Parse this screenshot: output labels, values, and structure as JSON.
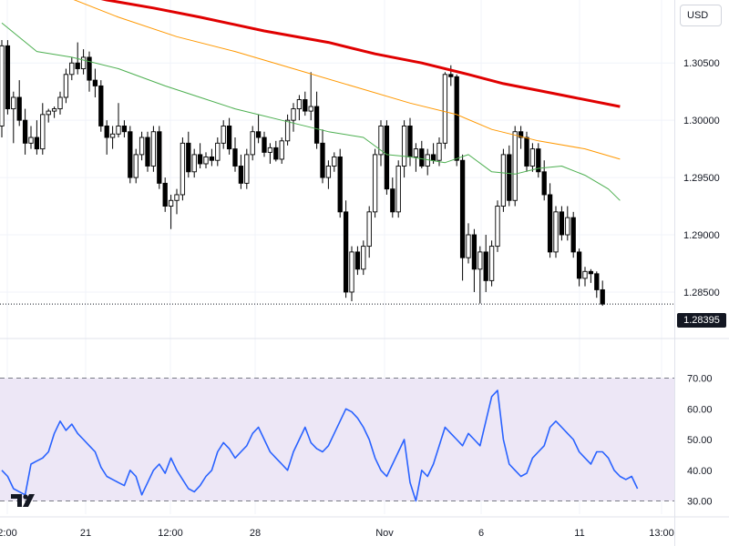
{
  "currency_selector": {
    "label": "USD"
  },
  "last_price": {
    "value": 1.28395,
    "label": "1.28395"
  },
  "colors": {
    "up_fill": "#ffffff",
    "candle": "#000000",
    "ma_fast": "#4caf50",
    "ma_mid": "#ff9800",
    "ma_slow": "#e00000",
    "rsi_line": "#2962ff",
    "rsi_band": "#ede7f6"
  },
  "chart_data": [
    {
      "type": "candlestick",
      "title": "",
      "instrument": "",
      "x_tick_labels": [
        "2:00",
        "21",
        "12:00",
        "28",
        "Nov",
        "6",
        "11",
        "13:00"
      ],
      "y_tick_labels": [
        "1.30500",
        "1.30000",
        "1.29500",
        "1.29000",
        "1.28500"
      ],
      "ylim": [
        1.2815,
        1.3105
      ],
      "candles": [
        [
          1.2995,
          1.307,
          1.2985,
          1.3065
        ],
        [
          1.3065,
          1.307,
          1.3005,
          1.301
        ],
        [
          1.301,
          1.3025,
          1.298,
          1.302
        ],
        [
          1.302,
          1.3035,
          1.2995,
          1.3
        ],
        [
          1.3,
          1.301,
          1.297,
          1.298
        ],
        [
          1.298,
          1.2995,
          1.2975,
          1.2985
        ],
        [
          1.2985,
          1.3,
          1.297,
          1.2975
        ],
        [
          1.2975,
          1.3015,
          1.297,
          1.3005
        ],
        [
          1.3005,
          1.301,
          1.2998,
          1.3008
        ],
        [
          1.3008,
          1.3012,
          1.3002,
          1.301
        ],
        [
          1.301,
          1.3025,
          1.3005,
          1.302
        ],
        [
          1.302,
          1.3045,
          1.3015,
          1.304
        ],
        [
          1.304,
          1.3055,
          1.3035,
          1.305
        ],
        [
          1.305,
          1.3068,
          1.304,
          1.3045
        ],
        [
          1.3045,
          1.3062,
          1.304,
          1.3055
        ],
        [
          1.3055,
          1.306,
          1.3025,
          1.3035
        ],
        [
          1.3035,
          1.3045,
          1.302,
          1.303
        ],
        [
          1.303,
          1.3035,
          1.299,
          1.2995
        ],
        [
          1.2995,
          1.3,
          1.297,
          1.2985
        ],
        [
          1.2985,
          1.2995,
          1.2975,
          1.2988
        ],
        [
          1.2988,
          1.3015,
          1.2985,
          1.2995
        ],
        [
          1.2995,
          1.3,
          1.2985,
          1.299
        ],
        [
          1.299,
          1.2995,
          1.2945,
          1.295
        ],
        [
          1.295,
          1.2975,
          1.2945,
          1.297
        ],
        [
          1.297,
          1.299,
          1.2965,
          1.2985
        ],
        [
          1.2985,
          1.299,
          1.2955,
          1.296
        ],
        [
          1.296,
          1.2995,
          1.2955,
          1.299
        ],
        [
          1.299,
          1.2995,
          1.294,
          1.2945
        ],
        [
          1.2945,
          1.295,
          1.292,
          1.2925
        ],
        [
          1.2925,
          1.2935,
          1.2905,
          1.293
        ],
        [
          1.293,
          1.294,
          1.2918,
          1.2935
        ],
        [
          1.2935,
          1.2985,
          1.293,
          1.298
        ],
        [
          1.298,
          1.299,
          1.295,
          1.2955
        ],
        [
          1.2955,
          1.2975,
          1.295,
          1.297
        ],
        [
          1.297,
          1.298,
          1.2958,
          1.2962
        ],
        [
          1.2962,
          1.2972,
          1.2958,
          1.2968
        ],
        [
          1.2968,
          1.2975,
          1.296,
          1.2965
        ],
        [
          1.2965,
          1.2985,
          1.296,
          1.298
        ],
        [
          1.298,
          1.3,
          1.2975,
          1.2995
        ],
        [
          1.2995,
          1.3002,
          1.297,
          1.2975
        ],
        [
          1.2975,
          1.2985,
          1.2955,
          1.296
        ],
        [
          1.296,
          1.297,
          1.294,
          1.2945
        ],
        [
          1.2945,
          1.2975,
          1.294,
          1.297
        ],
        [
          1.297,
          1.2995,
          1.2965,
          1.299
        ],
        [
          1.299,
          1.3005,
          1.298,
          1.2985
        ],
        [
          1.2985,
          1.299,
          1.2968,
          1.2972
        ],
        [
          1.2972,
          1.298,
          1.2962,
          1.2976
        ],
        [
          1.2976,
          1.2982,
          1.2964,
          1.2966
        ],
        [
          1.2966,
          1.2985,
          1.2962,
          1.2982
        ],
        [
          1.2982,
          1.3005,
          1.2978,
          1.3
        ],
        [
          1.3,
          1.3015,
          1.299,
          1.301
        ],
        [
          1.301,
          1.3022,
          1.3,
          1.3018
        ],
        [
          1.3018,
          1.3025,
          1.3004,
          1.3008
        ],
        [
          1.3008,
          1.3042,
          1.3,
          1.3012
        ],
        [
          1.3012,
          1.3025,
          1.2975,
          1.298
        ],
        [
          1.298,
          1.2992,
          1.2945,
          1.295
        ],
        [
          1.295,
          1.2965,
          1.294,
          1.296
        ],
        [
          1.296,
          1.2972,
          1.2955,
          1.2968
        ],
        [
          1.2968,
          1.2975,
          1.2915,
          1.292
        ],
        [
          1.292,
          1.293,
          1.2845,
          1.285
        ],
        [
          1.285,
          1.289,
          1.2842,
          1.2885
        ],
        [
          1.2885,
          1.289,
          1.2865,
          1.287
        ],
        [
          1.287,
          1.2895,
          1.2865,
          1.289
        ],
        [
          1.289,
          1.2925,
          1.288,
          1.292
        ],
        [
          1.292,
          1.2975,
          1.2915,
          1.297
        ],
        [
          1.297,
          1.3,
          1.296,
          1.2995
        ],
        [
          1.2995,
          1.3,
          1.2935,
          1.294
        ],
        [
          1.294,
          1.295,
          1.2915,
          1.292
        ],
        [
          1.292,
          1.2965,
          1.2915,
          1.296
        ],
        [
          1.296,
          1.3,
          1.295,
          1.2995
        ],
        [
          1.2995,
          1.3002,
          1.296,
          1.2968
        ],
        [
          1.2968,
          1.298,
          1.2955,
          1.2975
        ],
        [
          1.2975,
          1.2982,
          1.2958,
          1.296
        ],
        [
          1.296,
          1.2975,
          1.2952,
          1.297
        ],
        [
          1.297,
          1.298,
          1.2962,
          1.2965
        ],
        [
          1.2965,
          1.2985,
          1.296,
          1.298
        ],
        [
          1.298,
          1.3042,
          1.2975,
          1.304
        ],
        [
          1.304,
          1.3048,
          1.303,
          1.3038
        ],
        [
          1.3038,
          1.304,
          1.296,
          1.2965
        ],
        [
          1.2965,
          1.297,
          1.286,
          1.288
        ],
        [
          1.288,
          1.291,
          1.2875,
          1.29
        ],
        [
          1.29,
          1.2905,
          1.285,
          1.287
        ],
        [
          1.287,
          1.289,
          1.284,
          1.2885
        ],
        [
          1.2885,
          1.29,
          1.285,
          1.286
        ],
        [
          1.286,
          1.2895,
          1.2855,
          1.289
        ],
        [
          1.289,
          1.293,
          1.2885,
          1.2925
        ],
        [
          1.2925,
          1.2975,
          1.292,
          1.297
        ],
        [
          1.297,
          1.2978,
          1.2925,
          1.293
        ],
        [
          1.293,
          1.2995,
          1.2925,
          1.299
        ],
        [
          1.299,
          1.2995,
          1.2975,
          1.2985
        ],
        [
          1.2985,
          1.299,
          1.2955,
          1.296
        ],
        [
          1.296,
          1.298,
          1.2955,
          1.2975
        ],
        [
          1.2975,
          1.298,
          1.295,
          1.2955
        ],
        [
          1.2955,
          1.2965,
          1.293,
          1.2935
        ],
        [
          1.2935,
          1.2945,
          1.288,
          1.2885
        ],
        [
          1.2885,
          1.2925,
          1.288,
          1.292
        ],
        [
          1.292,
          1.2925,
          1.2895,
          1.29
        ],
        [
          1.29,
          1.2925,
          1.2895,
          1.2915
        ],
        [
          1.2915,
          1.292,
          1.288,
          1.2885
        ],
        [
          1.2885,
          1.2888,
          1.2855,
          1.2862
        ],
        [
          1.2862,
          1.2872,
          1.2855,
          1.2868
        ],
        [
          1.2868,
          1.287,
          1.2858,
          1.2866
        ],
        [
          1.2866,
          1.2868,
          1.2845,
          1.2852
        ],
        [
          1.2852,
          1.286,
          1.2838,
          1.28395
        ]
      ],
      "moving_averages": [
        {
          "color_key": "ma_slow",
          "points": [
            [
              0,
              1.314
            ],
            [
              12,
              1.3112
            ],
            [
              18,
              1.3105
            ],
            [
              26,
              1.3098
            ],
            [
              34,
              1.309
            ],
            [
              45,
              1.3078
            ],
            [
              56,
              1.3068
            ],
            [
              64,
              1.3058
            ],
            [
              72,
              1.305
            ],
            [
              80,
              1.304
            ],
            [
              86,
              1.3032
            ],
            [
              92,
              1.3026
            ],
            [
              98,
              1.302
            ],
            [
              106,
              1.3012
            ]
          ]
        },
        {
          "color_key": "ma_mid",
          "points": [
            [
              0,
              1.313
            ],
            [
              10,
              1.311
            ],
            [
              20,
              1.309
            ],
            [
              30,
              1.3073
            ],
            [
              40,
              1.306
            ],
            [
              50,
              1.3045
            ],
            [
              60,
              1.303
            ],
            [
              70,
              1.3015
            ],
            [
              78,
              1.3005
            ],
            [
              84,
              1.2992
            ],
            [
              92,
              1.2982
            ],
            [
              100,
              1.2975
            ],
            [
              106,
              1.2966
            ]
          ]
        },
        {
          "color_key": "ma_fast",
          "points": [
            [
              0,
              1.3085
            ],
            [
              6,
              1.306
            ],
            [
              12,
              1.3055
            ],
            [
              20,
              1.3045
            ],
            [
              28,
              1.303
            ],
            [
              34,
              1.302
            ],
            [
              40,
              1.301
            ],
            [
              48,
              1.3
            ],
            [
              56,
              1.299
            ],
            [
              62,
              1.2985
            ],
            [
              66,
              1.297
            ],
            [
              70,
              1.2968
            ],
            [
              76,
              1.2963
            ],
            [
              80,
              1.297
            ],
            [
              84,
              1.2955
            ],
            [
              88,
              1.2953
            ],
            [
              92,
              1.2958
            ],
            [
              96,
              1.296
            ],
            [
              100,
              1.2952
            ],
            [
              104,
              1.294
            ],
            [
              106,
              1.293
            ]
          ]
        }
      ]
    },
    {
      "type": "line",
      "title": "",
      "y_tick_labels": [
        "70.00",
        "60.00",
        "50.00",
        "40.00",
        "30.00"
      ],
      "ylim": [
        26,
        74
      ],
      "band": [
        30,
        70
      ],
      "values": [
        40,
        38,
        34,
        33,
        32,
        42,
        43,
        44,
        46,
        52,
        56,
        53,
        55,
        52,
        50,
        48,
        46,
        41,
        38,
        37,
        36,
        35,
        40,
        38,
        32,
        36,
        40,
        42,
        39,
        44,
        40,
        37,
        34,
        33,
        35,
        38,
        40,
        46,
        49,
        47,
        44,
        46,
        48,
        52,
        54,
        50,
        46,
        44,
        42,
        40,
        46,
        50,
        54,
        49,
        47,
        46,
        48,
        52,
        56,
        60,
        59,
        57,
        54,
        50,
        44,
        40,
        38,
        42,
        46,
        50,
        36,
        30,
        40,
        38,
        42,
        48,
        54,
        52,
        50,
        48,
        52,
        50,
        48,
        56,
        64,
        66,
        50,
        42,
        40,
        38,
        39,
        44,
        46,
        48,
        54,
        56,
        54,
        52,
        50,
        46,
        44,
        42,
        46,
        46,
        44,
        40,
        38,
        37,
        38,
        34
      ],
      "rsi_x_offset": 0
    }
  ]
}
